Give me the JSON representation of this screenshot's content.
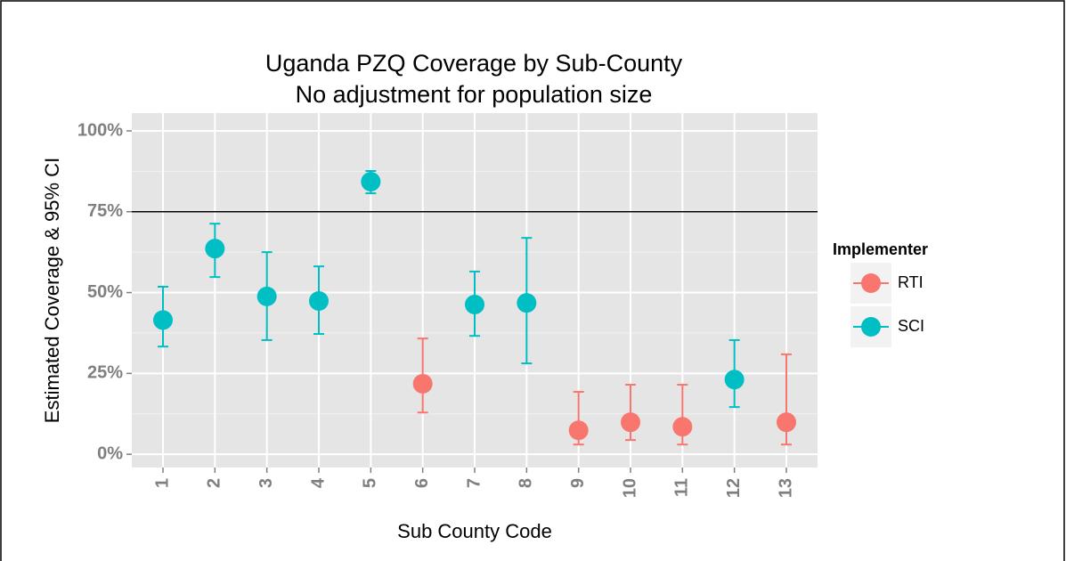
{
  "chart_data": {
    "type": "errorbar-point",
    "title": "Uganda PZQ Coverage by Sub-County",
    "subtitle": "No adjustment for population size",
    "x_label": "Sub County Code",
    "y_label": "Estimated Coverage & 95% CI",
    "legend_title": "Implementer",
    "categories": [
      "1",
      "2",
      "3",
      "4",
      "5",
      "6",
      "7",
      "8",
      "9",
      "10",
      "11",
      "12",
      "13"
    ],
    "series": [
      {
        "name": "RTI",
        "color": "#F8766D",
        "values": [
          null,
          null,
          null,
          null,
          null,
          21.8,
          null,
          null,
          7.4,
          9.9,
          8.5,
          null,
          9.9
        ],
        "lower": [
          null,
          null,
          null,
          null,
          null,
          12.9,
          null,
          null,
          3.0,
          4.4,
          3.0,
          null,
          3.0
        ],
        "upper": [
          null,
          null,
          null,
          null,
          null,
          35.8,
          null,
          null,
          19.3,
          21.5,
          21.5,
          null,
          30.9
        ]
      },
      {
        "name": "SCI",
        "color": "#00BFC4",
        "values": [
          41.5,
          63.6,
          48.8,
          47.4,
          84.3,
          null,
          46.3,
          46.8,
          null,
          null,
          null,
          23.1,
          null
        ],
        "lower": [
          33.3,
          54.8,
          35.3,
          37.2,
          80.7,
          null,
          36.6,
          28.1,
          null,
          null,
          null,
          14.6,
          null
        ],
        "upper": [
          51.8,
          71.3,
          62.5,
          58.1,
          87.6,
          null,
          56.5,
          66.9,
          null,
          null,
          null,
          35.3,
          null
        ]
      }
    ],
    "hline": 75,
    "ylim": [
      -4.1,
      105.5
    ],
    "yticks": [
      {
        "value": 0,
        "label": "0%"
      },
      {
        "value": 25,
        "label": "25%"
      },
      {
        "value": 50,
        "label": "50%"
      },
      {
        "value": 75,
        "label": "75%"
      },
      {
        "value": 100,
        "label": "100%"
      }
    ],
    "grid": true
  }
}
